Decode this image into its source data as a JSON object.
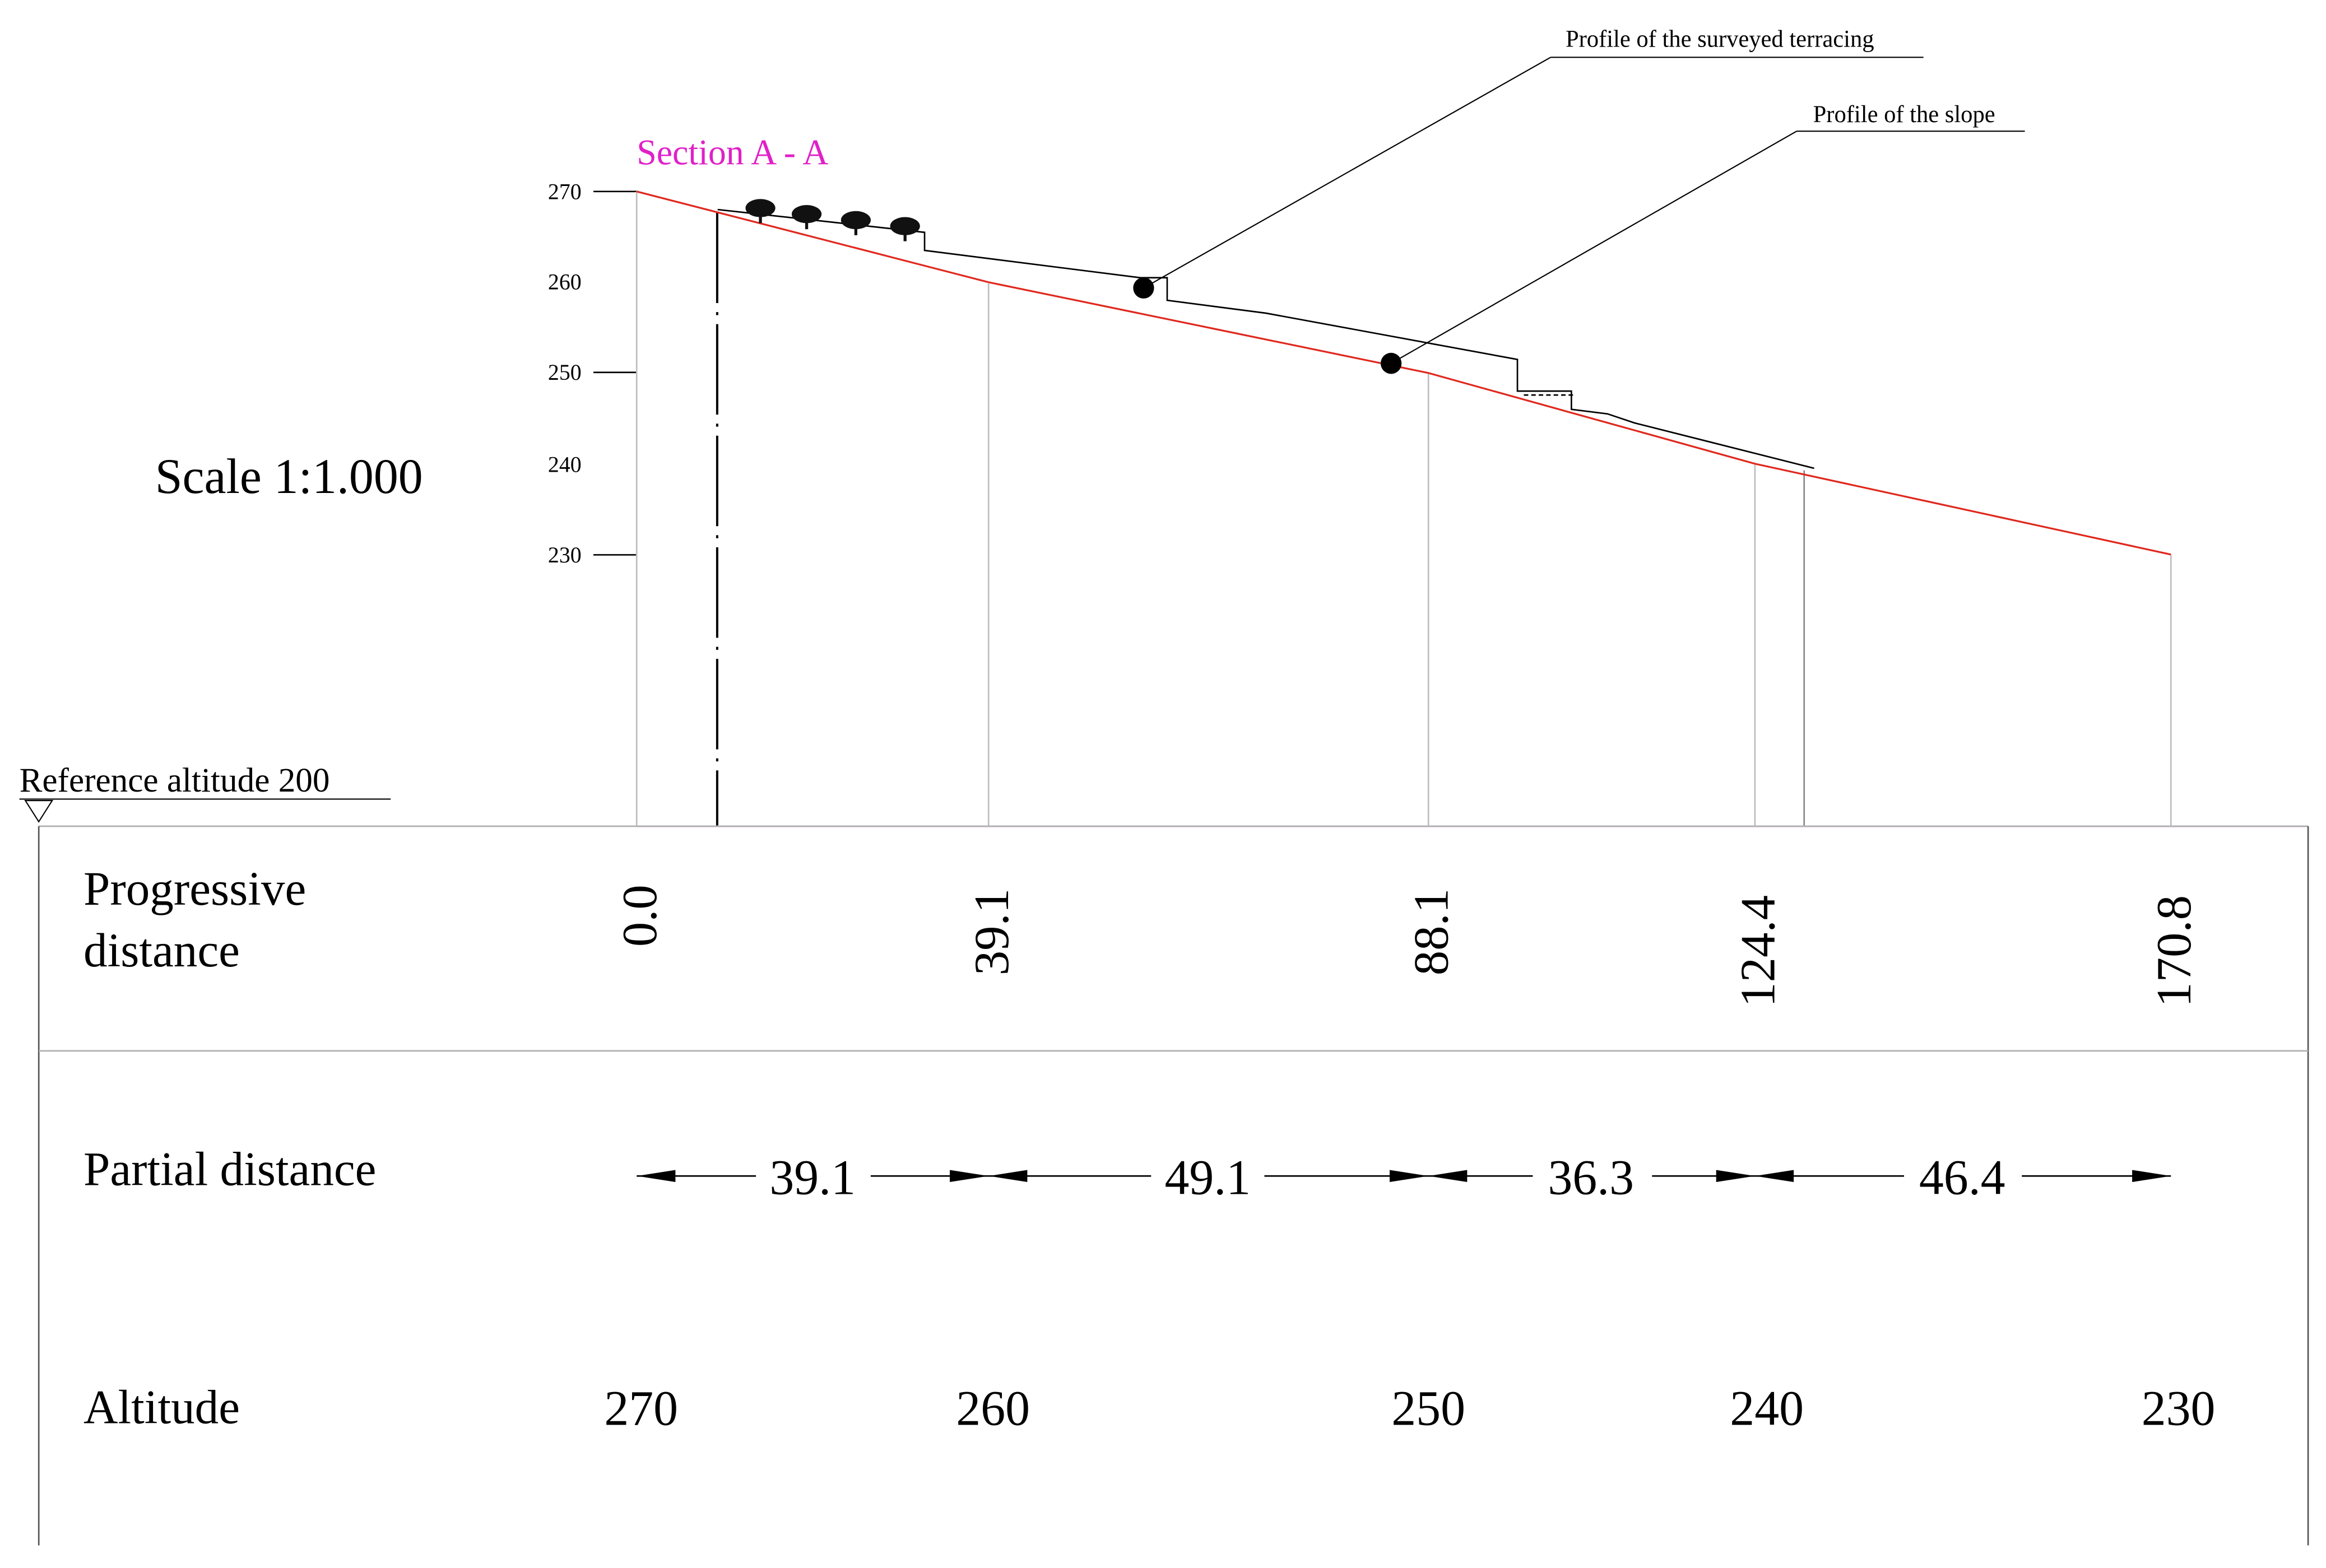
{
  "section_title": "Section A - A",
  "scale_label": "Scale 1:1.000",
  "reference_label": "Reference altitude 200",
  "callouts": {
    "terracing": "Profile of the surveyed terracing",
    "slope": "Profile of the slope"
  },
  "y_axis": {
    "ticks": [
      "270",
      "260",
      "250",
      "240",
      "230"
    ]
  },
  "table": {
    "rows": {
      "progressive_line1": "Progressive",
      "progressive_line2": "distance",
      "partial": "Partial distance",
      "altitude": "Altitude"
    },
    "progressive": [
      "0.0",
      "39.1",
      "88.1",
      "124.4",
      "170.8"
    ],
    "partial": [
      "39.1",
      "49.1",
      "36.3",
      "46.4"
    ],
    "altitude": [
      "270",
      "260",
      "250",
      "240",
      "230"
    ]
  },
  "colors": {
    "section_title": "#e020c8",
    "slope_line": "#e0281e",
    "baseline": "#e020c8",
    "terrain_line": "#000000",
    "grid": "#bdbdbd"
  },
  "chart_data": {
    "type": "line",
    "xlabel": "Progressive distance",
    "ylabel": "Altitude",
    "reference_altitude": 200,
    "ylim": [
      200,
      270
    ],
    "series": [
      {
        "name": "Profile of the slope",
        "x": [
          0.0,
          39.1,
          88.1,
          124.4,
          170.8
        ],
        "y": [
          270,
          260,
          250,
          240,
          230
        ]
      },
      {
        "name": "Profile of the surveyed terracing",
        "x": [
          9,
          32,
          32,
          56,
          59,
          59,
          70,
          98,
          98,
          104,
          104,
          108,
          111,
          131
        ],
        "y": [
          268,
          265.5,
          263.5,
          260.5,
          260.5,
          258,
          256.6,
          251.5,
          248,
          248,
          246,
          245.5,
          244.5,
          239.5
        ]
      }
    ]
  }
}
